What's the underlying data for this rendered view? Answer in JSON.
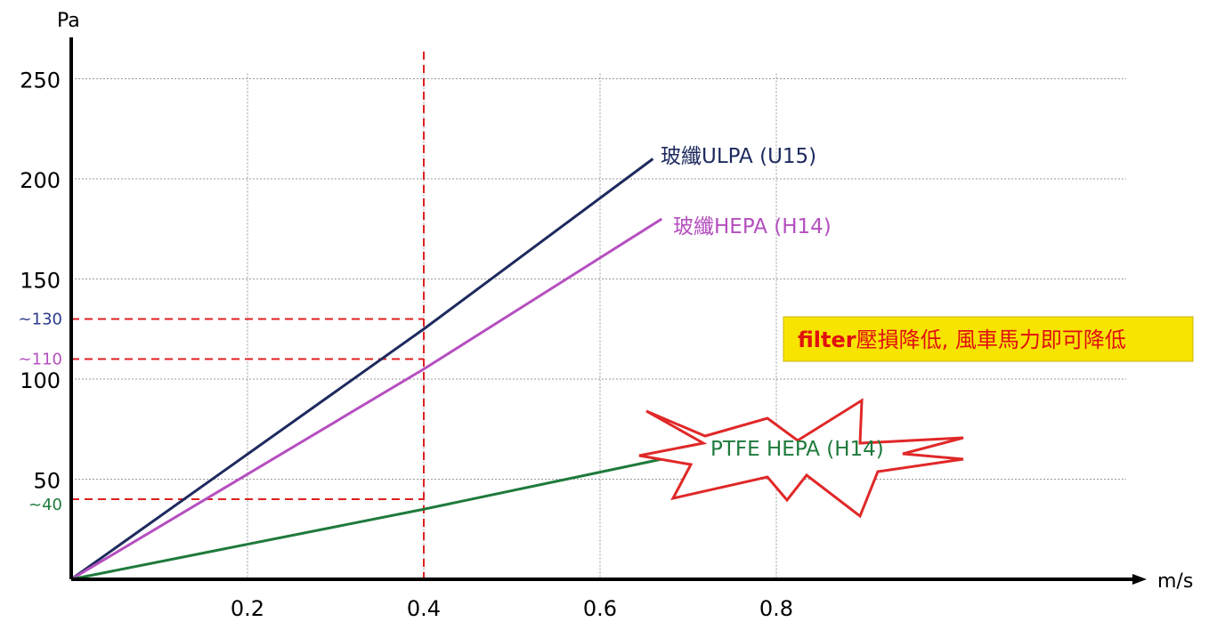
{
  "chart_data": {
    "type": "line",
    "xlabel": "m/s",
    "ylabel": "Pa",
    "xlim": [
      0,
      1.0
    ],
    "ylim": [
      0,
      260
    ],
    "x_ticks": [
      {
        "value": 0.2,
        "label": "0.2"
      },
      {
        "value": 0.4,
        "label": "0.4"
      },
      {
        "value": 0.6,
        "label": "0.6"
      },
      {
        "value": 0.8,
        "label": "0.8"
      }
    ],
    "y_ticks": [
      {
        "value": 50,
        "label": "50"
      },
      {
        "value": 100,
        "label": "100"
      },
      {
        "value": 150,
        "label": "150"
      },
      {
        "value": 200,
        "label": "200"
      },
      {
        "value": 250,
        "label": "250"
      }
    ],
    "grid": true,
    "series": [
      {
        "name": "玻纖ULPA (U15)",
        "color": "#1e2a5e",
        "x": [
          0,
          0.4,
          0.66
        ],
        "y": [
          0,
          125,
          210
        ]
      },
      {
        "name": "玻纖HEPA (H14)",
        "color": "#b54fbf",
        "x": [
          0,
          0.4,
          0.67
        ],
        "y": [
          0,
          105,
          180
        ]
      },
      {
        "name": "PTFE HEPA (H14)",
        "color": "#1e7a3c",
        "x": [
          0,
          0.4,
          0.67
        ],
        "y": [
          0,
          35,
          60
        ]
      }
    ],
    "reference_x": {
      "value": 0.4,
      "color": "#e02020"
    },
    "reference_y": [
      {
        "value": 130,
        "label": "~130",
        "color": "#2a3a8a"
      },
      {
        "value": 110,
        "label": "~110",
        "color": "#b54fbf"
      },
      {
        "value": 40,
        "label": "~40",
        "color": "#1e7a3c"
      }
    ],
    "callout": {
      "bold": "filter",
      "text": "壓損降低,",
      "rest": " 風車馬力即可降低",
      "text_color": "#e01010",
      "background": "#f7e400"
    }
  }
}
